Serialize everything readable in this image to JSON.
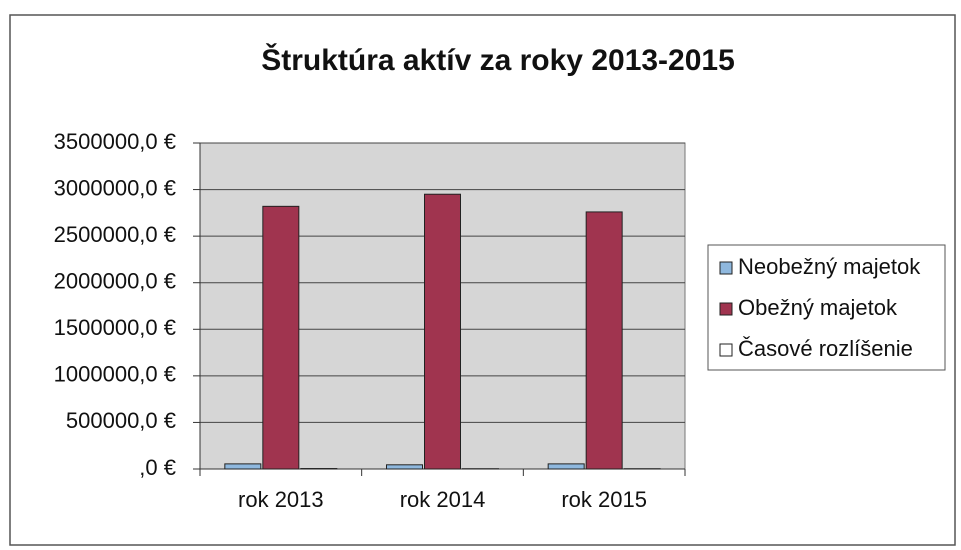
{
  "chart_data": {
    "type": "bar",
    "title": "Štruktúra aktív za roky 2013-2015",
    "categories": [
      "rok 2013",
      "rok 2014",
      "rok 2015"
    ],
    "series": [
      {
        "name": "Neobežný majetok",
        "color": "#8fb8de",
        "values": [
          55000,
          45000,
          55000
        ]
      },
      {
        "name": "Obežný majetok",
        "color": "#a0344f",
        "values": [
          2820000,
          2950000,
          2760000
        ]
      },
      {
        "name": "Časové rozlíšenie",
        "color": "#ffffff",
        "values": [
          5000,
          3000,
          3000
        ]
      }
    ],
    "ylim": [
      0,
      3500000
    ],
    "yticks": [
      {
        "value": 0,
        "label": ",0 €"
      },
      {
        "value": 500000,
        "label": "500000,0 €"
      },
      {
        "value": 1000000,
        "label": "1000000,0 €"
      },
      {
        "value": 1500000,
        "label": "1500000,0 €"
      },
      {
        "value": 2000000,
        "label": "2000000,0 €"
      },
      {
        "value": 2500000,
        "label": "2500000,0 €"
      },
      {
        "value": 3000000,
        "label": "3000000,0 €"
      },
      {
        "value": 3500000,
        "label": "3500000,0 €"
      }
    ],
    "grid": true,
    "legend": "right"
  }
}
